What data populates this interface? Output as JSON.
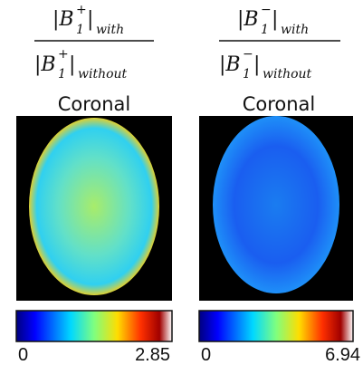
{
  "panels": [
    {
      "formula": {
        "numerator": [
          "|B",
          "+",
          "1",
          "|",
          "with"
        ],
        "denominator": [
          "|B",
          "+",
          "1",
          "|",
          "without"
        ]
      },
      "title": "Coronal",
      "colorbar": {
        "min": "0",
        "max": "2.85"
      }
    },
    {
      "formula": {
        "numerator": [
          "|B",
          "−",
          "1",
          "|",
          "with"
        ],
        "denominator": [
          "|B",
          "−",
          "1",
          "|",
          "without"
        ]
      },
      "title": "Coronal",
      "colorbar": {
        "min": "0",
        "max": "6.94"
      }
    }
  ]
}
